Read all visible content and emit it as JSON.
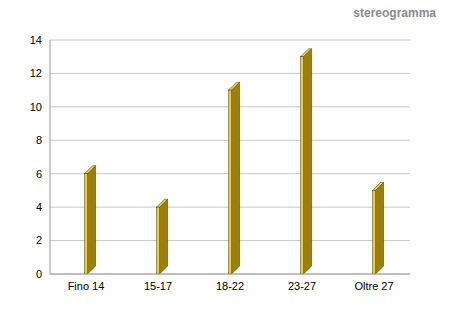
{
  "chart_data": {
    "type": "bar",
    "title": "stereogramma",
    "categories": [
      "Fino 14",
      "15-17",
      "18-22",
      "23-27",
      "Oltre 27"
    ],
    "values": [
      6,
      4,
      11,
      13,
      5
    ],
    "color": "#f9cf1e",
    "ylim": [
      0,
      14
    ],
    "yticks": [
      0,
      2,
      4,
      6,
      8,
      10,
      12,
      14
    ],
    "grid": true
  }
}
